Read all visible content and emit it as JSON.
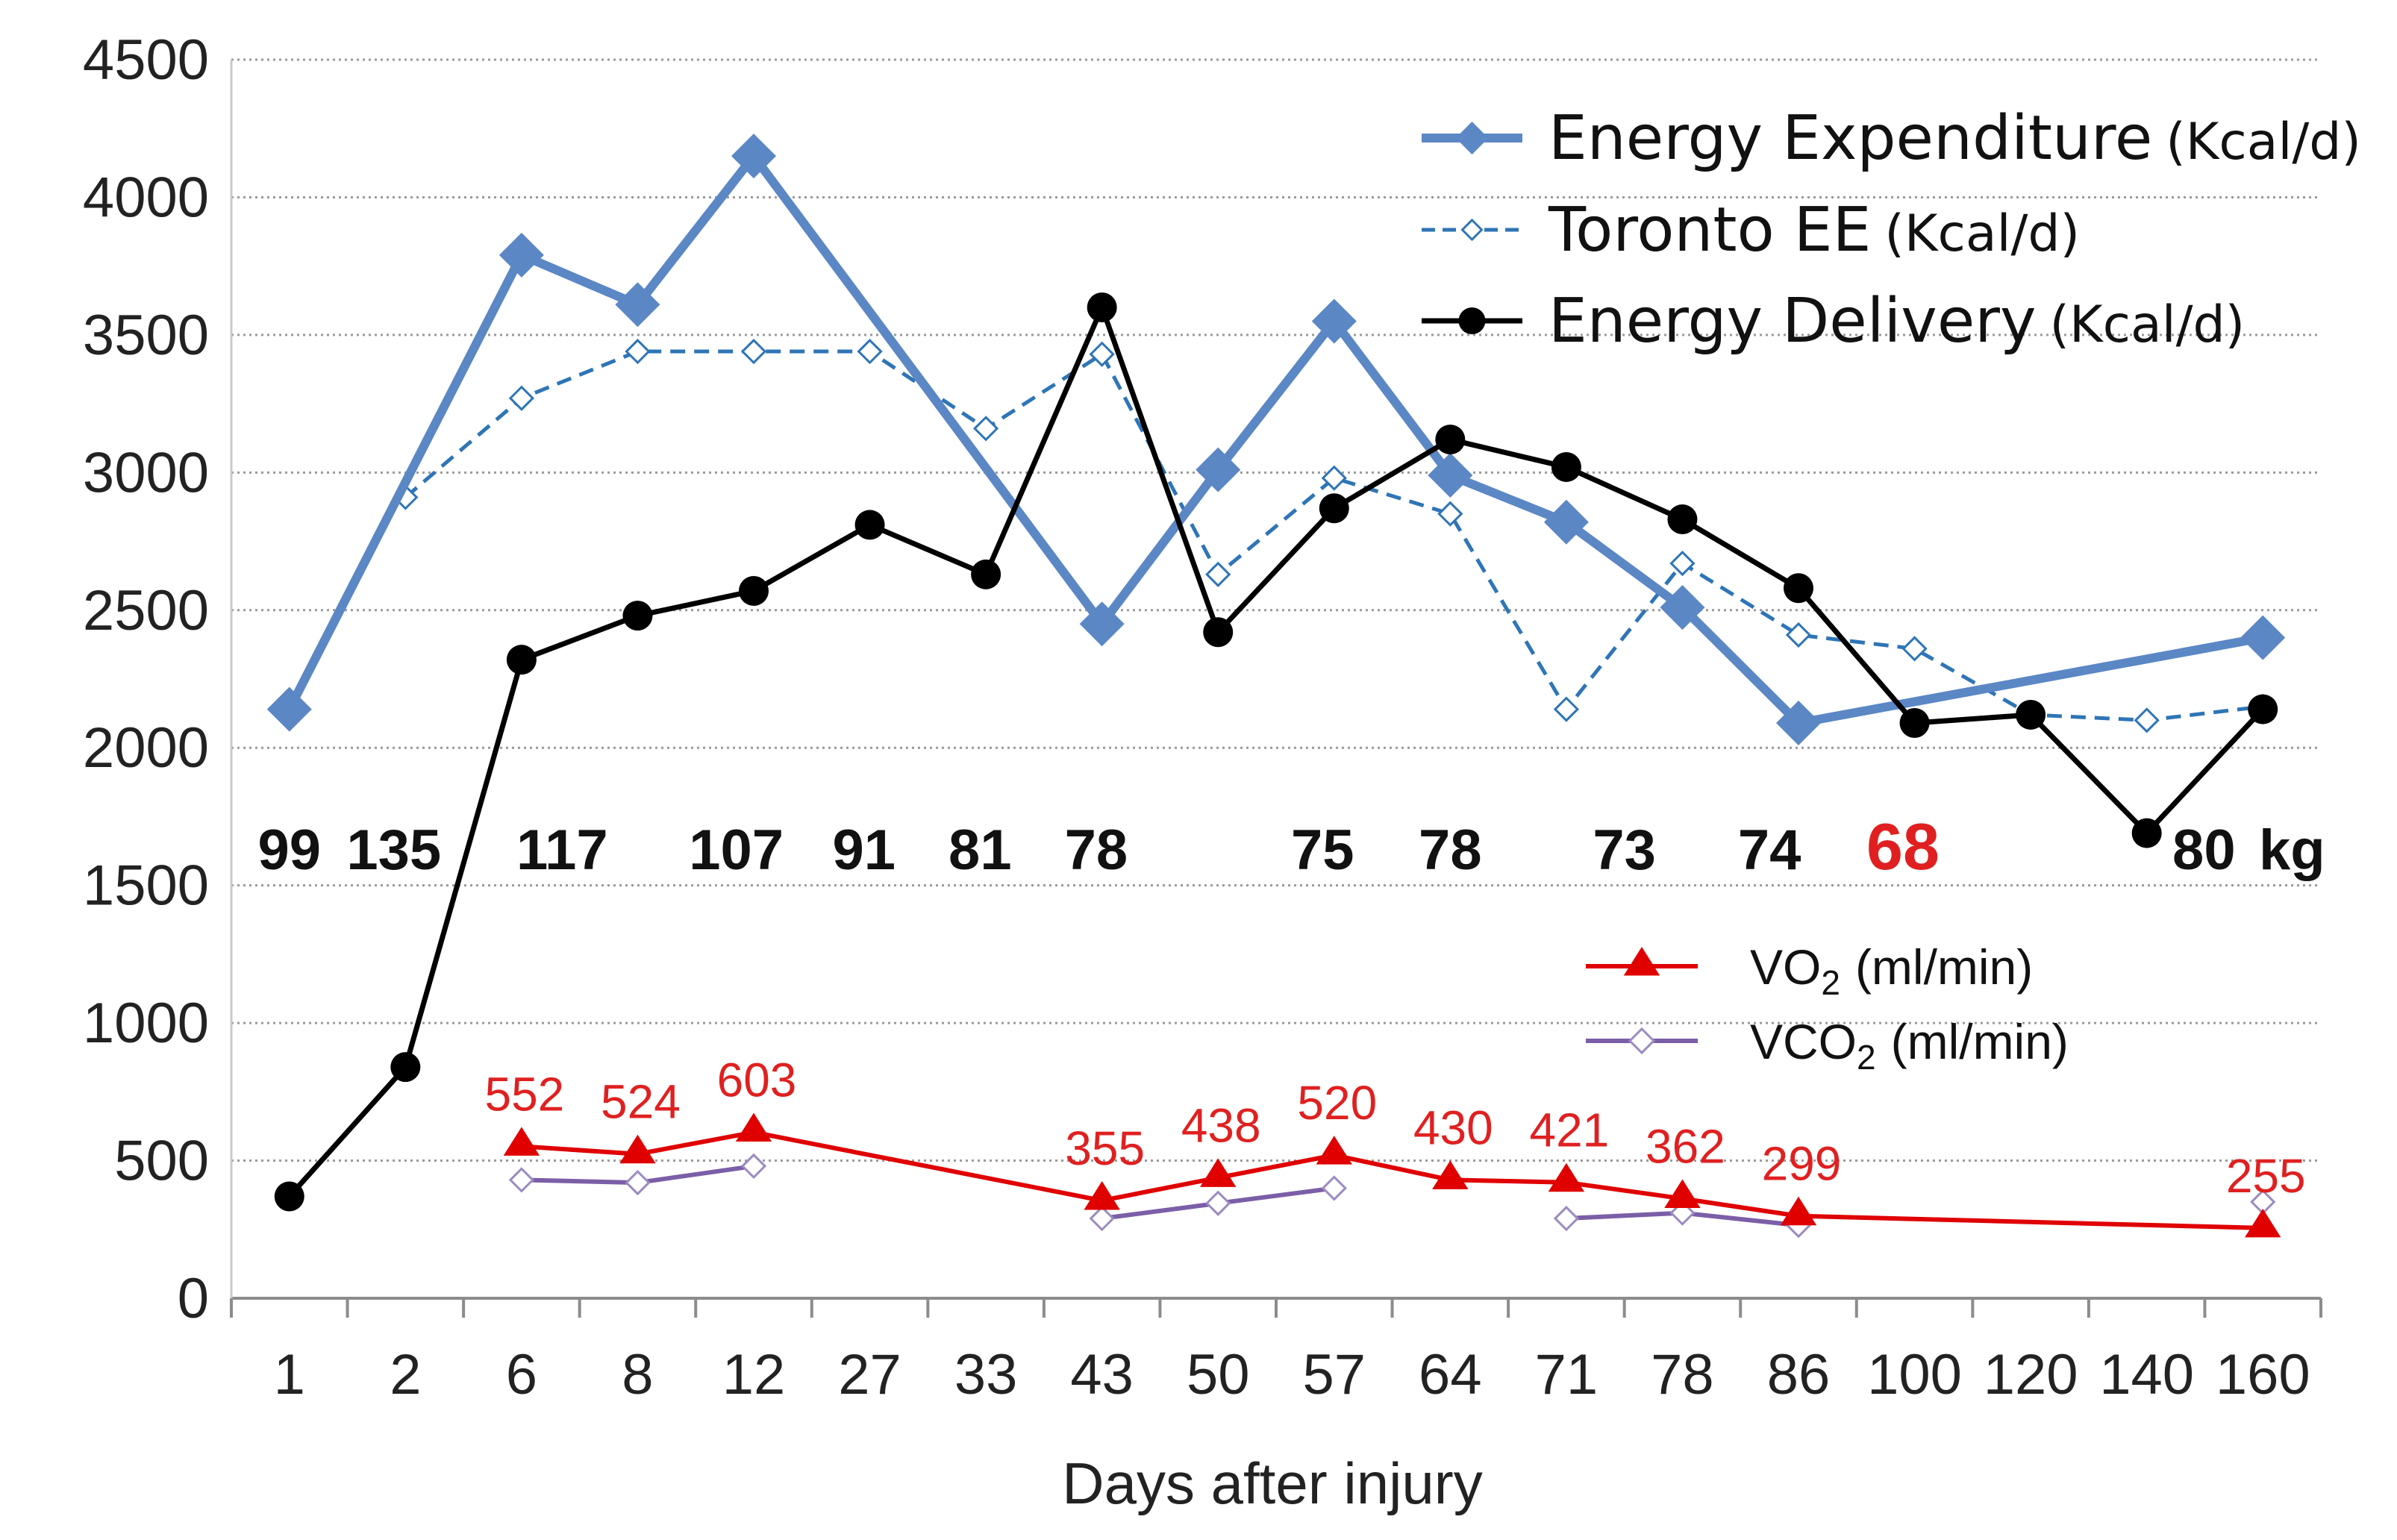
{
  "chart_data": {
    "type": "line",
    "title": "",
    "xlabel": "Days after injury",
    "ylabel": "",
    "ylim": [
      0,
      4500
    ],
    "yticks": [
      0,
      500,
      1000,
      1500,
      2000,
      2500,
      3000,
      3500,
      4000,
      4500
    ],
    "grid": true,
    "categories": [
      "1",
      "2",
      "6",
      "8",
      "12",
      "27",
      "33",
      "43",
      "50",
      "57",
      "64",
      "71",
      "78",
      "86",
      "100",
      "120",
      "140",
      "160"
    ],
    "series": [
      {
        "name": "Energy Expenditure",
        "unit": "(Kcal/d)",
        "color": "#5B87C5",
        "values": [
          2140,
          null,
          3790,
          3610,
          4150,
          null,
          null,
          2450,
          3010,
          3550,
          2990,
          2820,
          2510,
          2090,
          null,
          null,
          null,
          2400
        ]
      },
      {
        "name": "Toronto EE",
        "unit": "(Kcal/d)",
        "color": "#2E75B6",
        "values": [
          null,
          2910,
          3270,
          3440,
          3440,
          3440,
          3160,
          3430,
          2630,
          2980,
          2850,
          2140,
          2670,
          2410,
          2360,
          2120,
          2100,
          2150
        ]
      },
      {
        "name": "Energy Delivery",
        "unit": "(Kcal/d)",
        "color": "#000000",
        "values": [
          370,
          840,
          2320,
          2480,
          2570,
          2810,
          2630,
          3600,
          2420,
          2870,
          3120,
          3020,
          2830,
          2580,
          2090,
          2120,
          1690,
          2140
        ]
      },
      {
        "name": "VO2",
        "unit": "(ml/min)",
        "color": "#E00000",
        "values": [
          null,
          null,
          552,
          524,
          603,
          null,
          null,
          355,
          438,
          520,
          430,
          421,
          362,
          299,
          null,
          null,
          null,
          255
        ],
        "labels": [
          "",
          "",
          "552",
          "524",
          "603",
          "",
          "",
          "355",
          "438",
          "520",
          "430",
          "421",
          "362",
          "299",
          "",
          "",
          "",
          "255"
        ]
      },
      {
        "name": "VCO2",
        "unit": "(ml/min)",
        "color": "#7B5EA7",
        "values": [
          null,
          null,
          430,
          420,
          480,
          null,
          null,
          290,
          345,
          400,
          null,
          290,
          310,
          265,
          null,
          null,
          null,
          350
        ]
      }
    ],
    "weights": {
      "unit": "kg",
      "entries": [
        {
          "pos": 0,
          "label": "99",
          "color": "#111111"
        },
        {
          "pos": 0.9,
          "label": "135",
          "color": "#111111"
        },
        {
          "pos": 2.35,
          "label": "117",
          "color": "#111111"
        },
        {
          "pos": 3.85,
          "label": "107",
          "color": "#111111"
        },
        {
          "pos": 4.95,
          "label": "91",
          "color": "#111111"
        },
        {
          "pos": 5.95,
          "label": "81",
          "color": "#111111"
        },
        {
          "pos": 6.95,
          "label": "78",
          "color": "#111111"
        },
        {
          "pos": 8.9,
          "label": "75",
          "color": "#111111"
        },
        {
          "pos": 10.0,
          "label": "78",
          "color": "#111111"
        },
        {
          "pos": 11.5,
          "label": "73",
          "color": "#111111"
        },
        {
          "pos": 12.75,
          "label": "74",
          "color": "#111111"
        },
        {
          "pos": 13.9,
          "label": "68",
          "color": "#E02020"
        },
        {
          "pos": 16.75,
          "label": "80",
          "color": "#111111"
        }
      ]
    },
    "legend": {
      "placement": "top-right",
      "items": [
        {
          "name": "Energy Expenditure",
          "unit": "(Kcal/d)"
        },
        {
          "name": "Toronto EE",
          "unit": "(Kcal/d)"
        },
        {
          "name": "Energy Delivery",
          "unit": "(Kcal/d)"
        }
      ],
      "secondary_items": [
        {
          "name": "VO",
          "sub": "2",
          "unit": "(ml/min)"
        },
        {
          "name": "VCO",
          "sub": "2",
          "unit": "(ml/min)"
        }
      ]
    }
  }
}
